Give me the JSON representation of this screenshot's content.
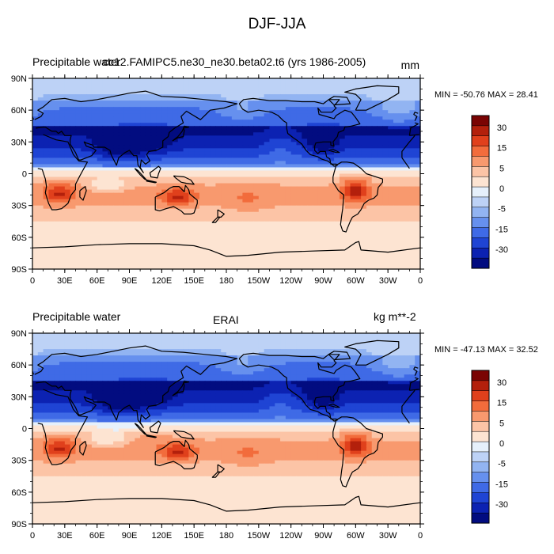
{
  "figure_title": "DJF-JJA",
  "chart_data": [
    {
      "type": "heatmap",
      "left_title": "Precipitable water",
      "center_title": "cc12.FAMIPC5.ne30_ne30.beta02.t6 (yrs 1986-2005)",
      "units": "mm",
      "min_max_text": "MIN = -50.76 MAX =  28.41",
      "min": -50.76,
      "max": 28.41,
      "xlim": [
        0,
        360
      ],
      "ylim": [
        -90,
        90
      ],
      "x_ticks": [
        "0",
        "30E",
        "60E",
        "90E",
        "120E",
        "150E",
        "180",
        "150W",
        "120W",
        "90W",
        "60W",
        "30W",
        "0"
      ],
      "y_ticks": [
        "90N",
        "60N",
        "30N",
        "0",
        "30S",
        "60S",
        "90S"
      ],
      "colorbar_levels": [
        "30",
        "15",
        "5",
        "0",
        "-5",
        "-15",
        "-30"
      ]
    },
    {
      "type": "heatmap",
      "left_title": "Precipitable water",
      "center_title": "ERAI",
      "units": "kg m**-2",
      "min_max_text": "MIN = -47.13 MAX =  32.52",
      "min": -47.13,
      "max": 32.52,
      "xlim": [
        0,
        360
      ],
      "ylim": [
        -90,
        90
      ],
      "x_ticks": [
        "0",
        "30E",
        "60E",
        "90E",
        "120E",
        "150E",
        "180",
        "150W",
        "120W",
        "90W",
        "60W",
        "30W",
        "0"
      ],
      "y_ticks": [
        "90N",
        "60N",
        "30N",
        "0",
        "30S",
        "60S",
        "90S"
      ],
      "colorbar_levels": [
        "30",
        "15",
        "5",
        "0",
        "-5",
        "-15",
        "-30"
      ]
    }
  ],
  "colorbar_colors": [
    "#7a0403",
    "#b3200c",
    "#e0401c",
    "#f26c3c",
    "#f8996e",
    "#fcc4a6",
    "#fde4d2",
    "#e6f0fb",
    "#bdd2f6",
    "#92b4f2",
    "#6690ee",
    "#3f6ae6",
    "#1f44d4",
    "#0c22b2",
    "#020c80"
  ]
}
